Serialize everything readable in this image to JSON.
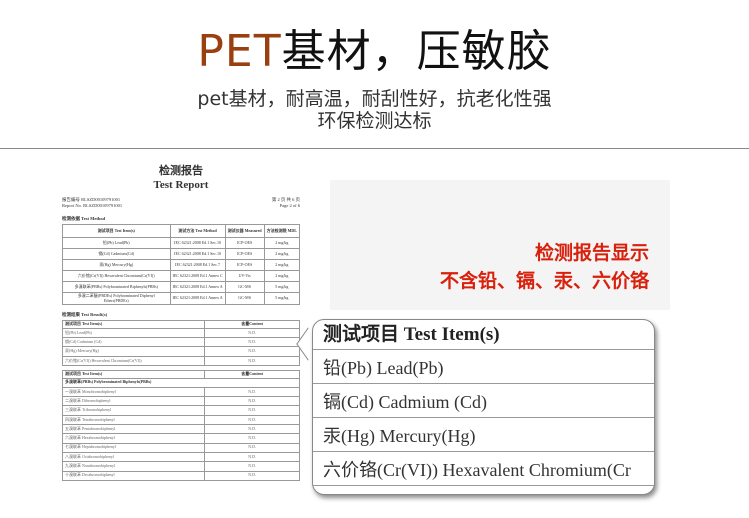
{
  "header": {
    "title_brand": "PET",
    "title_rest": "基材，压敏胶",
    "subtitle_line1": "pet基材，耐高温，耐刮性好，抗老化性强",
    "subtitle_line2": "环保检测达标"
  },
  "report": {
    "title_cn": "检测报告",
    "title_en": "Test Report",
    "report_no_cn": "报告编号  RLSZD00109791001",
    "report_no_en": "Report No.  RLSZD00109791001",
    "page_cn": "第 2 页   共 6 页",
    "page_en": "Page 2 of 6",
    "method_label": "检测依据 Test Method",
    "method_headers": [
      "测试项目 Test Item(s)",
      "测试方法 Test Method",
      "测试仪器 Measured",
      "方法检测限 MDL"
    ],
    "method_rows": [
      [
        "铅(Pb) Lead(Pb)",
        "IEC 62321:2008 Ed.1 Sec.10",
        "ICP-OES",
        "2 mg/kg"
      ],
      [
        "镉(Cd) Cadmium(Cd)",
        "IEC 62321:2008 Ed.1 Sec.10",
        "ICP-OES",
        "2 mg/kg"
      ],
      [
        "汞(Hg) Mercury(Hg)",
        "IEC 62321:2008 Ed.1 Sec.7",
        "ICP-OES",
        "2 mg/kg"
      ],
      [
        "六价铬(Cr(VI)) Hexavalent Chromium(Cr(VI))",
        "IEC 62321:2008 Ed.1 Annex C",
        "UV-Vis",
        "2 mg/kg"
      ],
      [
        "多溴联苯(PBBs) Polybrominated Biphenyls(PBBs)",
        "IEC 62321:2008 Ed.1 Annex A",
        "GC-MS",
        "5 mg/kg"
      ],
      [
        "多溴二苯醚(PBDEs) Polybrominated Diphenyl Ethers(PBDEs)",
        "IEC 62321:2008 Ed.1 Annex A",
        "GC-MS",
        "5 mg/kg"
      ]
    ],
    "result_label": "检测结果 Test Result(s)",
    "result_headers": [
      "测试项目 Test Item(s)",
      "含量Content"
    ],
    "result_rows": [
      [
        "铅(Pb) Lead(Pb)",
        "N.D."
      ],
      [
        "镉(Cd) Cadmium (Cd)",
        "N.D."
      ],
      [
        "汞(Hg) Mercury(Hg)",
        "N.D."
      ],
      [
        "六价铬(Cr(VI)) Hexavalent Chromium(Cr(VI))",
        "N.D."
      ]
    ],
    "pbb_group": "多溴联苯(PBBs) Polybrominated Biphenyls(PBBs)",
    "pbb_rows": [
      [
        "一溴联苯 Monobromobiphenyl",
        "N.D."
      ],
      [
        "二溴联苯 Dibromobiphenyl",
        "N.D."
      ],
      [
        "三溴联苯 Tribromobiphenyl",
        "N.D."
      ],
      [
        "四溴联苯 Tetrabromobiphenyl",
        "N.D."
      ],
      [
        "五溴联苯 Pentabromobiphenyl",
        "N.D."
      ],
      [
        "六溴联苯 Hexabromobiphenyl",
        "N.D."
      ],
      [
        "七溴联苯 Heptabromobiphenyl",
        "N.D."
      ],
      [
        "八溴联苯 Octabromobiphenyl",
        "N.D."
      ],
      [
        "九溴联苯 Nonabromobiphenyl",
        "N.D."
      ],
      [
        "十溴联苯 Decabromobiphenyl",
        "N.D."
      ]
    ]
  },
  "highlight": {
    "line1": "检测报告显示",
    "line2": "不含铅、镉、汞、六价铬",
    "color": "#d8200c"
  },
  "callout": {
    "header": "测试项目 Test Item(s)",
    "items": [
      "铅(Pb) Lead(Pb)",
      "镉(Cd) Cadmium (Cd)",
      "汞(Hg) Mercury(Hg)",
      "六价铬(Cr(VI)) Hexavalent Chromium(Cr"
    ]
  },
  "colors": {
    "brand": "#9a4010"
  }
}
